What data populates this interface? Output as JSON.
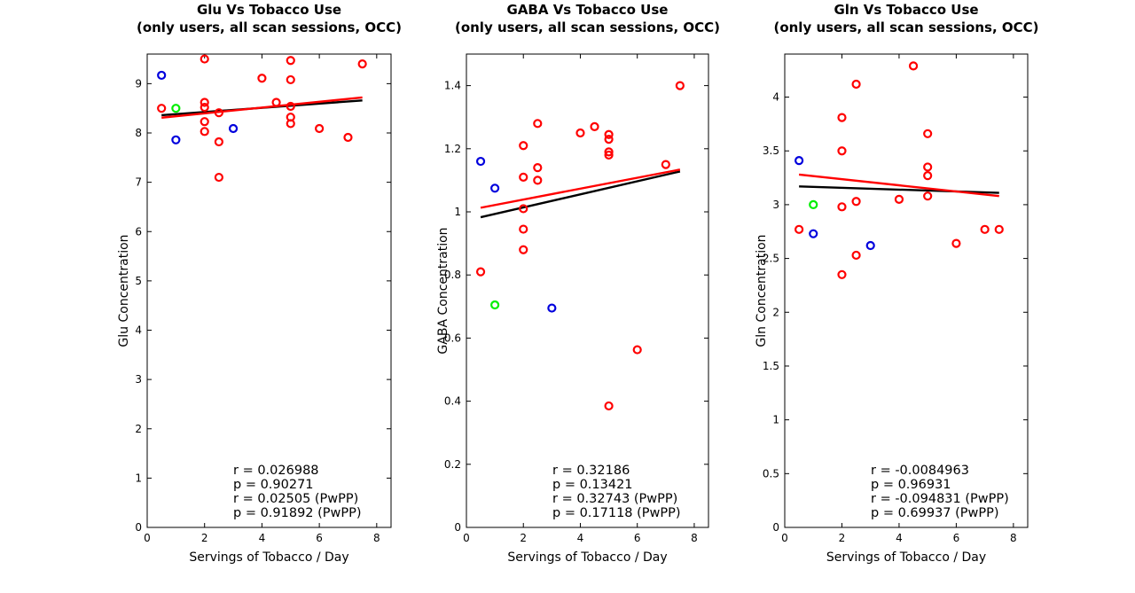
{
  "colors": {
    "smoker": "#ff0000",
    "blue": "#0000dd",
    "green": "#00ee00",
    "fit_all": "#000000",
    "fit_pwpp": "#ff0000"
  },
  "chart_data": [
    {
      "type": "scatter",
      "title": [
        "Glu Vs Tobacco Use",
        "(only users, all scan sessions, OCC)"
      ],
      "xlabel": "Servings of Tobacco / Day",
      "ylabel": "Glu Concentration",
      "xlim": [
        0,
        8.5
      ],
      "ylim": [
        0,
        9.6
      ],
      "xticks": [
        0,
        2,
        4,
        6,
        8
      ],
      "yticks": [
        0,
        1,
        2,
        3,
        4,
        5,
        6,
        7,
        8,
        9
      ],
      "ytick_labels": [
        "0",
        "1",
        "2",
        "3",
        "4",
        "5",
        "6",
        "7",
        "8",
        "9"
      ],
      "grid": false,
      "points": [
        {
          "x": 0.5,
          "y": 9.17,
          "c": "blue"
        },
        {
          "x": 1,
          "y": 7.86,
          "c": "blue"
        },
        {
          "x": 3,
          "y": 8.09,
          "c": "blue"
        },
        {
          "x": 1,
          "y": 8.5,
          "c": "green"
        },
        {
          "x": 0.5,
          "y": 8.5,
          "c": "red"
        },
        {
          "x": 2,
          "y": 9.5,
          "c": "red"
        },
        {
          "x": 2,
          "y": 8.62,
          "c": "red"
        },
        {
          "x": 2,
          "y": 8.52,
          "c": "red"
        },
        {
          "x": 2,
          "y": 8.23,
          "c": "red"
        },
        {
          "x": 2,
          "y": 8.03,
          "c": "red"
        },
        {
          "x": 2.5,
          "y": 8.41,
          "c": "red"
        },
        {
          "x": 2.5,
          "y": 7.82,
          "c": "red"
        },
        {
          "x": 2.5,
          "y": 7.1,
          "c": "red"
        },
        {
          "x": 4,
          "y": 9.11,
          "c": "red"
        },
        {
          "x": 4.5,
          "y": 8.62,
          "c": "red"
        },
        {
          "x": 5,
          "y": 9.47,
          "c": "red"
        },
        {
          "x": 5,
          "y": 9.08,
          "c": "red"
        },
        {
          "x": 5,
          "y": 8.54,
          "c": "red"
        },
        {
          "x": 5,
          "y": 8.32,
          "c": "red"
        },
        {
          "x": 5,
          "y": 8.19,
          "c": "red"
        },
        {
          "x": 6,
          "y": 8.09,
          "c": "red"
        },
        {
          "x": 7,
          "y": 7.91,
          "c": "red"
        },
        {
          "x": 7.5,
          "y": 9.4,
          "c": "red"
        }
      ],
      "fits": [
        {
          "c": "black",
          "x": [
            0.5,
            7.5
          ],
          "y": [
            8.36,
            8.66
          ]
        },
        {
          "c": "red",
          "x": [
            0.5,
            7.5
          ],
          "y": [
            8.31,
            8.72
          ]
        }
      ],
      "stats": [
        "r = 0.026988",
        "p = 0.90271",
        "r = 0.02505 (PwPP)",
        "p = 0.91892 (PwPP)"
      ]
    },
    {
      "type": "scatter",
      "title": [
        "GABA Vs Tobacco Use",
        "(only users, all scan sessions, OCC)"
      ],
      "xlabel": "Servings of Tobacco / Day",
      "ylabel": "GABA Concentration",
      "xlim": [
        0,
        8.5
      ],
      "ylim": [
        0,
        1.5
      ],
      "xticks": [
        0,
        2,
        4,
        6,
        8
      ],
      "yticks": [
        0,
        0.2,
        0.4,
        0.6,
        0.8,
        1,
        1.2,
        1.4
      ],
      "ytick_labels": [
        "0",
        "0.2",
        "0.4",
        "0.6",
        "0.8",
        "1",
        "1.2",
        "1.4"
      ],
      "grid": false,
      "points": [
        {
          "x": 0.5,
          "y": 1.16,
          "c": "blue"
        },
        {
          "x": 1,
          "y": 1.075,
          "c": "blue"
        },
        {
          "x": 3,
          "y": 0.695,
          "c": "blue"
        },
        {
          "x": 1,
          "y": 0.705,
          "c": "green"
        },
        {
          "x": 0.5,
          "y": 0.81,
          "c": "red"
        },
        {
          "x": 2,
          "y": 1.21,
          "c": "red"
        },
        {
          "x": 2,
          "y": 1.11,
          "c": "red"
        },
        {
          "x": 2,
          "y": 1.01,
          "c": "red"
        },
        {
          "x": 2,
          "y": 0.945,
          "c": "red"
        },
        {
          "x": 2,
          "y": 0.88,
          "c": "red"
        },
        {
          "x": 2.5,
          "y": 1.28,
          "c": "red"
        },
        {
          "x": 2.5,
          "y": 1.14,
          "c": "red"
        },
        {
          "x": 2.5,
          "y": 1.1,
          "c": "red"
        },
        {
          "x": 4,
          "y": 1.25,
          "c": "red"
        },
        {
          "x": 4.5,
          "y": 1.27,
          "c": "red"
        },
        {
          "x": 5,
          "y": 1.245,
          "c": "red"
        },
        {
          "x": 5,
          "y": 1.23,
          "c": "red"
        },
        {
          "x": 5,
          "y": 1.19,
          "c": "red"
        },
        {
          "x": 5,
          "y": 1.18,
          "c": "red"
        },
        {
          "x": 5,
          "y": 0.385,
          "c": "red"
        },
        {
          "x": 6,
          "y": 0.563,
          "c": "red"
        },
        {
          "x": 7,
          "y": 1.15,
          "c": "red"
        },
        {
          "x": 7.5,
          "y": 1.4,
          "c": "red"
        }
      ],
      "fits": [
        {
          "c": "black",
          "x": [
            0.5,
            7.5
          ],
          "y": [
            0.983,
            1.128
          ]
        },
        {
          "c": "red",
          "x": [
            0.5,
            7.5
          ],
          "y": [
            1.013,
            1.134
          ]
        }
      ],
      "stats": [
        "r = 0.32186",
        "p = 0.13421",
        "r = 0.32743 (PwPP)",
        "p = 0.17118 (PwPP)"
      ]
    },
    {
      "type": "scatter",
      "title": [
        "Gln Vs Tobacco Use",
        "(only users, all scan sessions, OCC)"
      ],
      "xlabel": "Servings of Tobacco / Day",
      "ylabel": "Gln Concentration",
      "xlim": [
        0,
        8.5
      ],
      "ylim": [
        0,
        4.4
      ],
      "xticks": [
        0,
        2,
        4,
        6,
        8
      ],
      "yticks": [
        0,
        0.5,
        1,
        1.5,
        2,
        2.5,
        3,
        3.5,
        4
      ],
      "ytick_labels": [
        "0",
        "0.5",
        "1",
        "1.5",
        "2",
        "2.5",
        "3",
        "3.5",
        "4"
      ],
      "grid": false,
      "points": [
        {
          "x": 0.5,
          "y": 3.41,
          "c": "blue"
        },
        {
          "x": 1,
          "y": 2.73,
          "c": "blue"
        },
        {
          "x": 3,
          "y": 2.62,
          "c": "blue"
        },
        {
          "x": 1,
          "y": 3.0,
          "c": "green"
        },
        {
          "x": 0.5,
          "y": 2.77,
          "c": "red"
        },
        {
          "x": 2,
          "y": 3.81,
          "c": "red"
        },
        {
          "x": 2,
          "y": 3.5,
          "c": "red"
        },
        {
          "x": 2,
          "y": 2.98,
          "c": "red"
        },
        {
          "x": 2,
          "y": 2.35,
          "c": "red"
        },
        {
          "x": 2.5,
          "y": 4.12,
          "c": "red"
        },
        {
          "x": 2.5,
          "y": 3.03,
          "c": "red"
        },
        {
          "x": 2.5,
          "y": 2.53,
          "c": "red"
        },
        {
          "x": 4,
          "y": 3.05,
          "c": "red"
        },
        {
          "x": 4.5,
          "y": 4.29,
          "c": "red"
        },
        {
          "x": 5,
          "y": 3.66,
          "c": "red"
        },
        {
          "x": 5,
          "y": 3.35,
          "c": "red"
        },
        {
          "x": 5,
          "y": 3.27,
          "c": "red"
        },
        {
          "x": 5,
          "y": 3.08,
          "c": "red"
        },
        {
          "x": 6,
          "y": 2.64,
          "c": "red"
        },
        {
          "x": 7,
          "y": 2.77,
          "c": "red"
        },
        {
          "x": 7.5,
          "y": 2.77,
          "c": "red"
        }
      ],
      "fits": [
        {
          "c": "black",
          "x": [
            0.5,
            7.5
          ],
          "y": [
            3.17,
            3.11
          ]
        },
        {
          "c": "red",
          "x": [
            0.5,
            7.5
          ],
          "y": [
            3.28,
            3.08
          ]
        }
      ],
      "stats": [
        "r = -0.0084963",
        "p = 0.96931",
        "r = -0.094831 (PwPP)",
        "p = 0.69937 (PwPP)"
      ]
    }
  ]
}
